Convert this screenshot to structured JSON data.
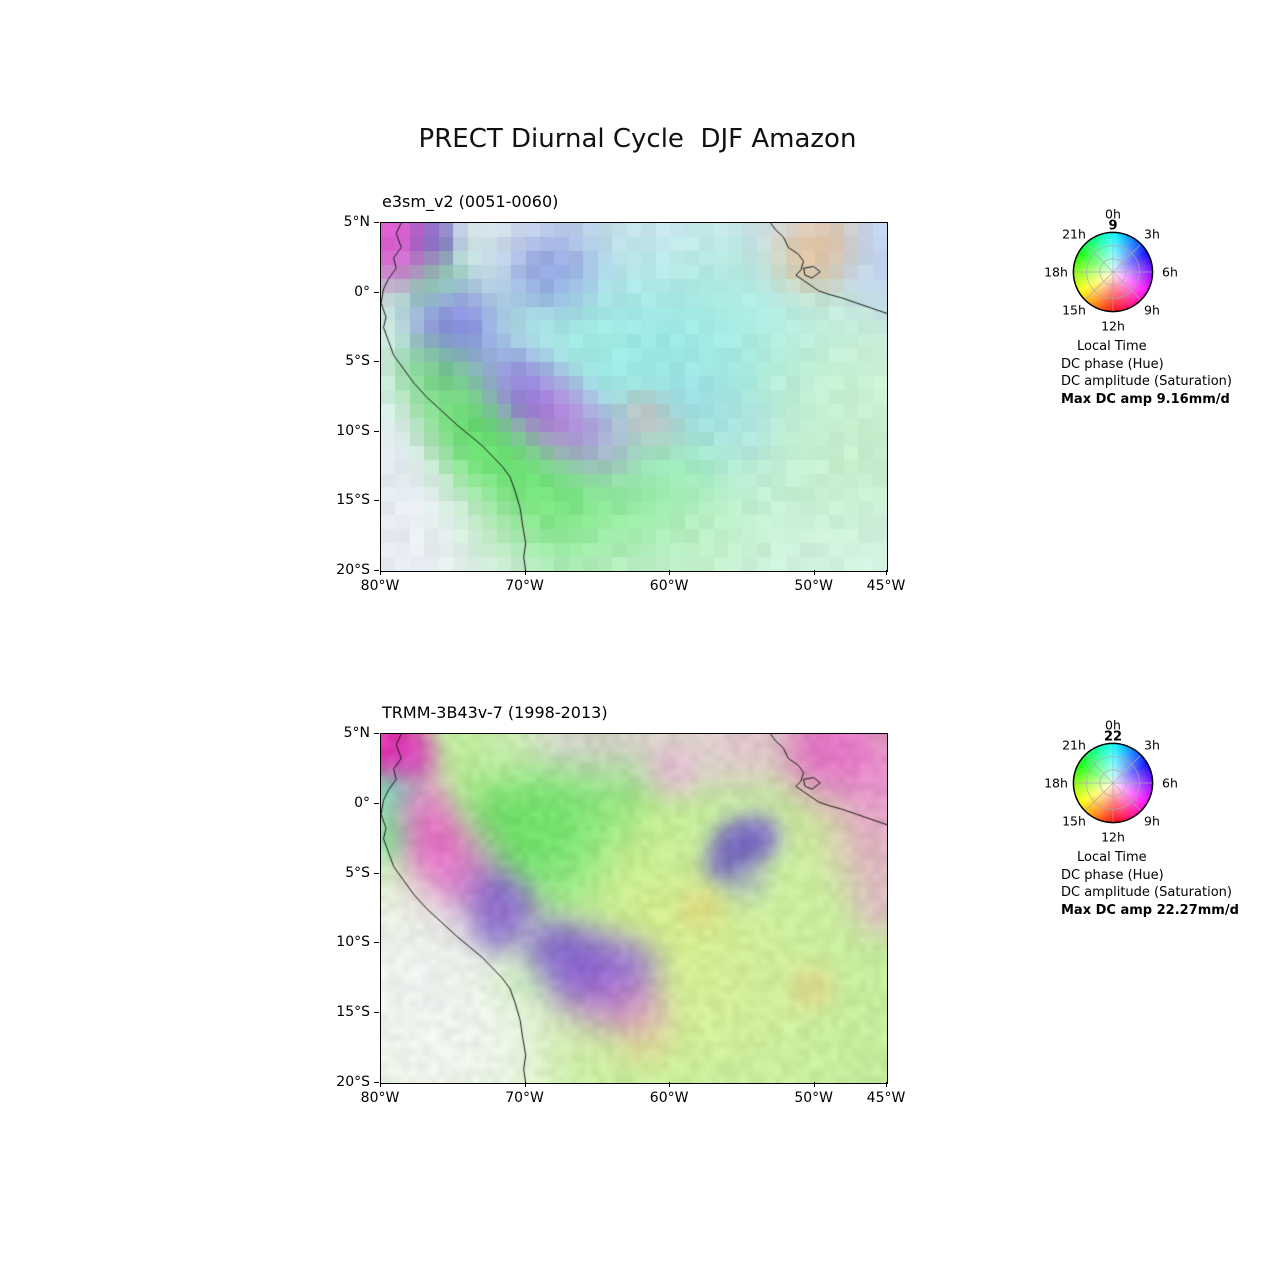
{
  "page": {
    "title": "PRECT Diurnal Cycle  DJF Amazon"
  },
  "axes": {
    "y_ticks": [
      "5°N",
      "0°",
      "5°S",
      "10°S",
      "15°S",
      "20°S"
    ],
    "x_ticks": [
      "80°W",
      "70°W",
      "60°W",
      "50°W",
      "45°W"
    ]
  },
  "clock": {
    "labels": [
      "0h",
      "3h",
      "6h",
      "9h",
      "12h",
      "15h",
      "18h",
      "21h"
    ],
    "caption": "Local Time",
    "phase_line": "DC phase (Hue)",
    "amp_line": "DC amplitude (Saturation)"
  },
  "panels": [
    {
      "subtitle": "e3sm_v2 (0051-0060)",
      "peak_hour": "9",
      "max_amp": "Max DC amp 9.16mm/d"
    },
    {
      "subtitle": "TRMM-3B43v-7 (1998-2013)",
      "peak_hour": "22",
      "max_amp": "Max DC amp 22.27mm/d"
    }
  ],
  "chart_data": [
    {
      "type": "heatmap",
      "title": "e3sm_v2 (0051-0060)",
      "variable": "PRECT diurnal cycle, DJF, Amazon",
      "lon_range_degW": [
        80,
        45
      ],
      "lat_range_deg": [
        5,
        -20
      ],
      "x_tick_labels": [
        "80°W",
        "70°W",
        "60°W",
        "50°W",
        "45°W"
      ],
      "y_tick_labels": [
        "5°N",
        "0°",
        "5°S",
        "10°S",
        "15°S",
        "20°S"
      ],
      "encoding": {
        "hue": "local time of diurnal precipitation maximum (0-24h)",
        "saturation": "diurnal cycle amplitude"
      },
      "max_dc_amplitude_mm_per_day": 9.16,
      "domain_peak_hour_local": 9,
      "grid": [
        35,
        25
      ],
      "pixelated": true,
      "noise": 12,
      "seed": 1.7,
      "background": "#d6f2e6",
      "blobs": [
        [
          0.03,
          0.03,
          0.045,
          3,
          "#e030c8"
        ],
        [
          0.055,
          0.1,
          0.035,
          2,
          "#d858d8"
        ],
        [
          0.1,
          0.05,
          0.028,
          2.5,
          "#4040b0"
        ],
        [
          0.1,
          0.16,
          0.04,
          1.5,
          "#58d878"
        ],
        [
          0.3,
          0.02,
          0.1,
          1.2,
          "#ecdcf2"
        ],
        [
          0.55,
          0.02,
          0.1,
          1.2,
          "#e4def6"
        ],
        [
          0.8,
          0.02,
          0.08,
          1.2,
          "#e0d8f4"
        ],
        [
          0.97,
          0.05,
          0.06,
          1.8,
          "#b8c8f0"
        ],
        [
          1.0,
          0.15,
          0.05,
          1.2,
          "#b8c4f0"
        ],
        [
          0.33,
          0.14,
          0.05,
          2,
          "#5c5cda"
        ],
        [
          0.38,
          0.1,
          0.05,
          1.2,
          "#9090e0"
        ],
        [
          0.16,
          0.32,
          0.05,
          2,
          "#6c5ce2"
        ],
        [
          0.13,
          0.26,
          0.04,
          1.5,
          "#8878e8"
        ],
        [
          0.45,
          0.3,
          0.16,
          1.2,
          "#8ce8e2"
        ],
        [
          0.62,
          0.34,
          0.14,
          1.2,
          "#92eae6"
        ],
        [
          0.55,
          0.46,
          0.13,
          1.2,
          "#80e4e0"
        ],
        [
          0.35,
          0.38,
          0.08,
          1,
          "#a0ecdc"
        ],
        [
          0.75,
          0.24,
          0.09,
          1,
          "#a4ecea"
        ],
        [
          0.27,
          0.46,
          0.045,
          2,
          "#8050e0"
        ],
        [
          0.305,
          0.515,
          0.045,
          2.2,
          "#a040e0"
        ],
        [
          0.355,
          0.565,
          0.045,
          2.2,
          "#c438d8"
        ],
        [
          0.41,
          0.615,
          0.045,
          1.8,
          "#b060e8"
        ],
        [
          0.46,
          0.65,
          0.04,
          1.3,
          "#c890e8"
        ],
        [
          0.12,
          0.42,
          0.045,
          1.8,
          "#54d054"
        ],
        [
          0.16,
          0.56,
          0.05,
          1.8,
          "#44cc44"
        ],
        [
          0.21,
          0.66,
          0.06,
          2,
          "#38d838"
        ],
        [
          0.285,
          0.74,
          0.07,
          2,
          "#4ce04c"
        ],
        [
          0.38,
          0.82,
          0.07,
          1.5,
          "#60e060"
        ],
        [
          0.48,
          0.78,
          0.08,
          1.3,
          "#78e878"
        ],
        [
          0.57,
          0.7,
          0.07,
          1,
          "#90e890"
        ],
        [
          0.52,
          0.55,
          0.03,
          2,
          "#f08898"
        ],
        [
          0.56,
          0.59,
          0.03,
          1.2,
          "#e8a0c0"
        ],
        [
          0.84,
          0.095,
          0.045,
          2,
          "#f0a058"
        ],
        [
          0.89,
          0.05,
          0.035,
          1.5,
          "#f4b880"
        ],
        [
          0.05,
          0.86,
          0.1,
          2,
          "#eceaf6"
        ],
        [
          0.12,
          0.95,
          0.09,
          1.8,
          "#f0eef8"
        ],
        [
          0.02,
          0.7,
          0.06,
          1.5,
          "#e4e4f2"
        ],
        [
          0.85,
          0.45,
          0.11,
          1,
          "#c6f0c6"
        ],
        [
          0.9,
          0.66,
          0.11,
          1,
          "#bceebc"
        ],
        [
          0.6,
          0.52,
          0.05,
          1.2,
          "#9cc4ee"
        ],
        [
          0.7,
          0.58,
          0.05,
          1,
          "#a8d0ec"
        ],
        [
          0.66,
          0.13,
          0.06,
          0.8,
          "#b0eccc"
        ],
        [
          0.22,
          0.9,
          0.06,
          1.2,
          "#a8eca8"
        ],
        [
          0.65,
          0.88,
          0.08,
          1,
          "#b4eeb4"
        ],
        [
          0.45,
          0.93,
          0.05,
          1,
          "#c0eec8"
        ]
      ]
    },
    {
      "type": "heatmap",
      "title": "TRMM-3B43v-7 (1998-2013)",
      "variable": "PRECT diurnal cycle, DJF, Amazon",
      "lon_range_degW": [
        80,
        45
      ],
      "lat_range_deg": [
        5,
        -20
      ],
      "x_tick_labels": [
        "80°W",
        "70°W",
        "60°W",
        "50°W",
        "45°W"
      ],
      "y_tick_labels": [
        "5°N",
        "0°",
        "5°S",
        "10°S",
        "15°S",
        "20°S"
      ],
      "encoding": {
        "hue": "local time of diurnal precipitation maximum (0-24h)",
        "saturation": "diurnal cycle amplitude"
      },
      "max_dc_amplitude_mm_per_day": 22.27,
      "domain_peak_hour_local": 22,
      "grid": [
        72,
        50
      ],
      "pixelated": false,
      "noise": 18,
      "seed": 4.3,
      "background": "#c0ec9c",
      "blobs": [
        [
          0.015,
          0.03,
          0.035,
          4,
          "#e810b0"
        ],
        [
          0.05,
          0.07,
          0.03,
          2.5,
          "#d838c8"
        ],
        [
          0.02,
          0.16,
          0.03,
          2,
          "#58e0b8"
        ],
        [
          0.02,
          0.28,
          0.035,
          1.5,
          "#60e090"
        ],
        [
          0.07,
          0.2,
          0.035,
          2,
          "#e870d0"
        ],
        [
          0.095,
          0.285,
          0.035,
          2.5,
          "#ea50c8"
        ],
        [
          0.125,
          0.345,
          0.035,
          2.5,
          "#e84fc8"
        ],
        [
          0.16,
          0.4,
          0.035,
          2.5,
          "#e060d0"
        ],
        [
          0.13,
          0.42,
          0.05,
          1.5,
          "#f090d8"
        ],
        [
          0.19,
          0.34,
          0.04,
          1.2,
          "#f0a0d8"
        ],
        [
          0.21,
          0.44,
          0.035,
          2.5,
          "#7040d0"
        ],
        [
          0.245,
          0.49,
          0.035,
          2.5,
          "#8048d8"
        ],
        [
          0.225,
          0.56,
          0.03,
          2,
          "#6038c8"
        ],
        [
          0.2,
          0.52,
          0.05,
          1,
          "#b080e0"
        ],
        [
          0.33,
          0.62,
          0.035,
          2,
          "#7848d8"
        ],
        [
          0.385,
          0.665,
          0.04,
          2.5,
          "#6038d0"
        ],
        [
          0.45,
          0.685,
          0.04,
          2.2,
          "#7850e0"
        ],
        [
          0.5,
          0.67,
          0.035,
          1.8,
          "#9060e8"
        ],
        [
          0.42,
          0.72,
          0.05,
          1.5,
          "#c060d8"
        ],
        [
          0.48,
          0.76,
          0.04,
          1.5,
          "#d058d0"
        ],
        [
          0.52,
          0.8,
          0.035,
          1.2,
          "#e080d8"
        ],
        [
          0.06,
          0.8,
          0.13,
          3,
          "#f6f4fa"
        ],
        [
          0.04,
          0.62,
          0.08,
          2,
          "#f2f0f6"
        ],
        [
          0.13,
          0.92,
          0.11,
          2.5,
          "#f7f6fb"
        ],
        [
          0.1,
          0.7,
          0.07,
          1.5,
          "#f0eef6"
        ],
        [
          0.42,
          0.05,
          0.05,
          1.5,
          "#f2c0ea"
        ],
        [
          0.5,
          0.02,
          0.05,
          1.2,
          "#f0c8ee"
        ],
        [
          0.57,
          0.1,
          0.035,
          1.5,
          "#ee9ce4"
        ],
        [
          0.35,
          0.02,
          0.04,
          1.2,
          "#ecc8f0"
        ],
        [
          0.28,
          0.05,
          0.05,
          1,
          "#e0ecc8"
        ],
        [
          0.64,
          0.03,
          0.05,
          1,
          "#f0c4ea"
        ],
        [
          0.73,
          0.02,
          0.05,
          1.3,
          "#f0b0e4"
        ],
        [
          0.93,
          0.07,
          0.06,
          2.5,
          "#f060d4"
        ],
        [
          0.99,
          0.18,
          0.05,
          2,
          "#f288dc"
        ],
        [
          0.87,
          0.03,
          0.045,
          2,
          "#e858cc"
        ],
        [
          0.97,
          0.33,
          0.05,
          1.5,
          "#f08cdc"
        ],
        [
          0.99,
          0.48,
          0.04,
          1.2,
          "#f0a0e0"
        ],
        [
          0.7,
          0.325,
          0.028,
          2.5,
          "#5838c8"
        ],
        [
          0.745,
          0.3,
          0.026,
          2.2,
          "#7048d8"
        ],
        [
          0.675,
          0.375,
          0.024,
          2,
          "#6040c8"
        ],
        [
          0.72,
          0.42,
          0.03,
          1,
          "#9898e0"
        ],
        [
          0.3,
          0.25,
          0.07,
          1.5,
          "#58dc58"
        ],
        [
          0.38,
          0.195,
          0.07,
          1.5,
          "#6ce468"
        ],
        [
          0.25,
          0.305,
          0.05,
          1.5,
          "#4cd84c"
        ],
        [
          0.455,
          0.145,
          0.055,
          1.2,
          "#7ce474"
        ],
        [
          0.33,
          0.35,
          0.06,
          1,
          "#70e070"
        ],
        [
          0.55,
          0.5,
          0.08,
          1,
          "#d8ee84"
        ],
        [
          0.62,
          0.6,
          0.07,
          1,
          "#e0f08c"
        ],
        [
          0.7,
          0.72,
          0.08,
          1,
          "#d8ec94"
        ],
        [
          0.52,
          0.3,
          0.06,
          1,
          "#ccec8c"
        ],
        [
          0.8,
          0.55,
          0.1,
          1,
          "#d2ee9e"
        ],
        [
          0.58,
          0.8,
          0.08,
          1,
          "#dcf094"
        ],
        [
          0.9,
          0.3,
          0.07,
          0.8,
          "#d4ee9c"
        ],
        [
          0.63,
          0.5,
          0.028,
          1.5,
          "#f0c070"
        ],
        [
          0.85,
          0.73,
          0.028,
          1.5,
          "#f0c87c"
        ],
        [
          0.52,
          0.87,
          0.035,
          1.2,
          "#ecd08c"
        ],
        [
          0.92,
          0.88,
          0.06,
          1,
          "#cceea0"
        ],
        [
          0.75,
          0.9,
          0.07,
          1,
          "#d4f0a0"
        ],
        [
          0.4,
          0.9,
          0.06,
          1,
          "#d0eea0"
        ],
        [
          0.28,
          0.7,
          0.04,
          1.2,
          "#b0e8a0"
        ],
        [
          0.6,
          0.35,
          0.05,
          0.8,
          "#c8eca0"
        ]
      ]
    }
  ],
  "coastlines": {
    "paths": [
      [
        [
          4,
          0
        ],
        [
          3,
          3
        ],
        [
          4,
          7
        ],
        [
          2.5,
          10
        ],
        [
          3,
          13
        ],
        [
          1.5,
          16
        ],
        [
          0.5,
          19
        ],
        [
          0,
          23
        ],
        [
          1,
          27
        ],
        [
          0.5,
          30
        ],
        [
          1.5,
          34
        ],
        [
          2.5,
          38
        ],
        [
          4.5,
          42
        ],
        [
          6.5,
          46
        ],
        [
          9,
          50
        ],
        [
          12,
          54
        ],
        [
          15,
          58
        ],
        [
          17.5,
          61
        ],
        [
          20,
          64
        ],
        [
          22,
          67
        ],
        [
          24,
          70
        ],
        [
          25.5,
          73
        ],
        [
          26.5,
          77
        ],
        [
          27.5,
          82
        ],
        [
          28,
          87
        ],
        [
          28.6,
          92
        ],
        [
          28.2,
          96
        ],
        [
          28.6,
          100
        ]
      ],
      [
        [
          77,
          0
        ],
        [
          78,
          2
        ],
        [
          79.5,
          4
        ],
        [
          80.5,
          7
        ],
        [
          82.5,
          9
        ],
        [
          83.5,
          11
        ],
        [
          83,
          13.5
        ],
        [
          82,
          15
        ],
        [
          83.5,
          16.5
        ],
        [
          85,
          18
        ],
        [
          86.5,
          19.5
        ],
        [
          88.5,
          20.5
        ],
        [
          91,
          21.5
        ],
        [
          94,
          23
        ],
        [
          97,
          24.5
        ],
        [
          100,
          26
        ]
      ],
      [
        [
          83.5,
          13
        ],
        [
          85.5,
          12.5
        ],
        [
          86.8,
          14
        ],
        [
          85.2,
          15.8
        ],
        [
          83.8,
          15
        ],
        [
          83.5,
          13
        ]
      ]
    ]
  },
  "wheel": {
    "hue_mapping": "hue = (180 + hour*15) deg, clockwise from top; 0h=cyan, 6h=violet, 12h=red, 18h=green",
    "saturation_mapping": "radius 0 (center, white) to max amplitude (rim, fully saturated)"
  }
}
